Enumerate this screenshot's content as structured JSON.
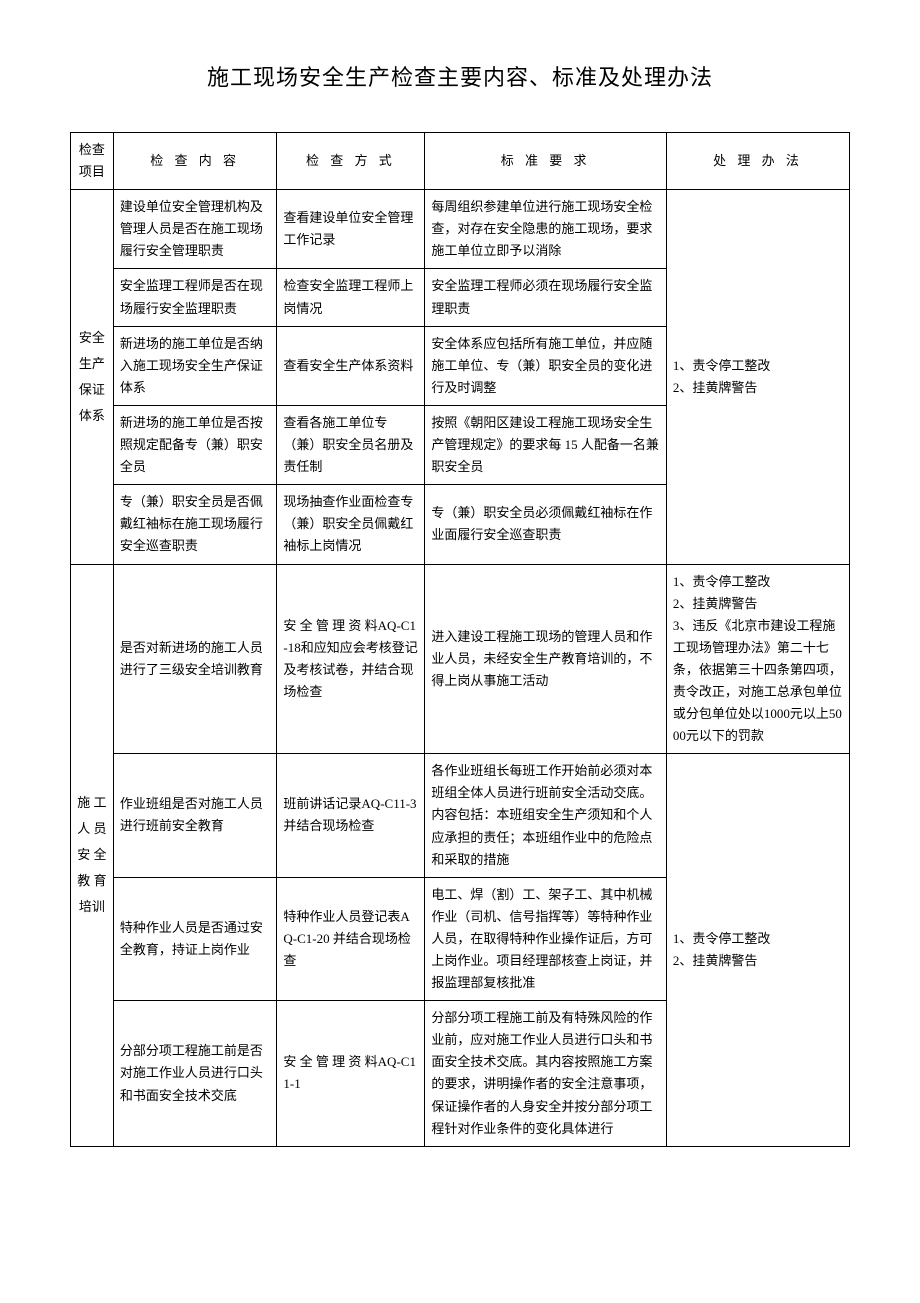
{
  "title": "施工现场安全生产检查主要内容、标准及处理办法",
  "headers": {
    "category": "检查项目",
    "content": "检 查 内 容",
    "method": "检 查 方 式",
    "standard": "标 准 要 求",
    "action": "处 理 办 法"
  },
  "cat1": {
    "label": "安全生产保证体系",
    "rows": [
      {
        "content": "建设单位安全管理机构及管理人员是否在施工现场履行安全管理职责",
        "method": "查看建设单位安全管理工作记录",
        "standard": "每周组织参建单位进行施工现场安全检查，对存在安全隐患的施工现场，要求施工单位立即予以消除"
      },
      {
        "content": "安全监理工程师是否在现场履行安全监理职责",
        "method": "检查安全监理工程师上岗情况",
        "standard": "安全监理工程师必须在现场履行安全监理职责"
      },
      {
        "content": "新进场的施工单位是否纳入施工现场安全生产保证体系",
        "method": "查看安全生产体系资料",
        "standard": "安全体系应包括所有施工单位，并应随施工单位、专（兼）职安全员的变化进行及时调整"
      },
      {
        "content": "新进场的施工单位是否按照规定配备专（兼）职安全员",
        "method": "查看各施工单位专（兼）职安全员名册及责任制",
        "standard": "按照《朝阳区建设工程施工现场安全生产管理规定》的要求每 15 人配备一名兼职安全员"
      },
      {
        "content": "专（兼）职安全员是否佩戴红袖标在施工现场履行安全巡查职责",
        "method": "现场抽查作业面检查专（兼）职安全员佩戴红袖标上岗情况",
        "standard": "专（兼）职安全员必须佩戴红袖标在作业面履行安全巡查职责"
      }
    ],
    "action": "1、责令停工整改\n2、挂黄牌警告"
  },
  "cat2": {
    "label": "施 工 人 员 安 全 教 育 培训",
    "rows": [
      {
        "content": "是否对新进场的施工人员进行了三级安全培训教育",
        "method": "安 全 管 理 资 料AQ-C1-18和应知应会考核登记及考核试卷，并结合现场检查",
        "standard": "进入建设工程施工现场的管理人员和作业人员，未经安全生产教育培训的，不得上岗从事施工活动",
        "action": "1、责令停工整改\n2、挂黄牌警告\n3、违反《北京市建设工程施工现场管理办法》第二十七条，依据第三十四条第四项，责令改正，对施工总承包单位或分包单位处以1000元以上5000元以下的罚款"
      },
      {
        "content": "作业班组是否对施工人员进行班前安全教育",
        "method": "班前讲话记录AQ-C11-3 并结合现场检查",
        "standard": "各作业班组长每班工作开始前必须对本班组全体人员进行班前安全活动交底。内容包括：本班组安全生产须知和个人应承担的责任；本班组作业中的危险点和采取的措施"
      },
      {
        "content": "特种作业人员是否通过安全教育，持证上岗作业",
        "method": "特种作业人员登记表AQ-C1-20 并结合现场检查",
        "standard": "电工、焊（割）工、架子工、其中机械作业（司机、信号指挥等）等特种作业人员，在取得特种作业操作证后，方可上岗作业。项目经理部核查上岗证，并报监理部复核批准"
      },
      {
        "content": "分部分项工程施工前是否对施工作业人员进行口头和书面安全技术交底",
        "method": "安 全 管 理 资 料AQ-C11-1",
        "standard": "分部分项工程施工前及有特殊风险的作业前，应对施工作业人员进行口头和书面安全技术交底。其内容按照施工方案的要求，讲明操作者的安全注意事项，保证操作者的人身安全并按分部分项工程针对作业条件的变化具体进行"
      }
    ],
    "action_234": "1、责令停工整改\n2、挂黄牌警告"
  }
}
